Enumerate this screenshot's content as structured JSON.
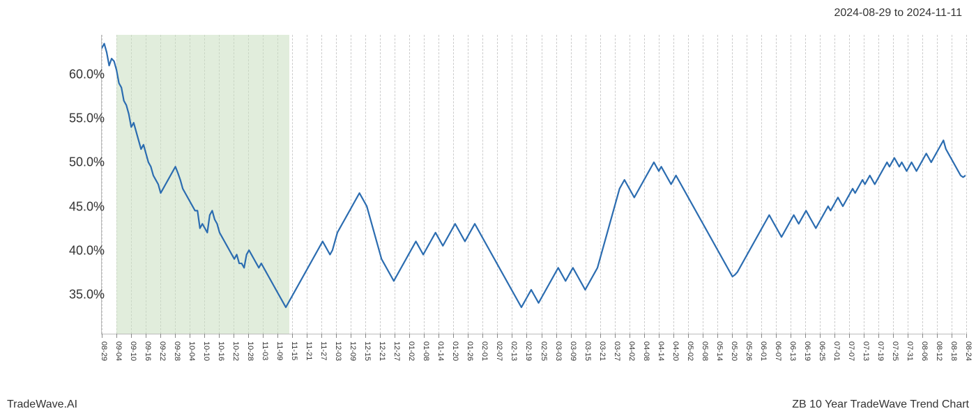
{
  "header": {
    "date_range": "2024-08-29 to 2024-11-11"
  },
  "footer": {
    "left": "TradeWave.AI",
    "right": "ZB 10 Year TradeWave Trend Chart"
  },
  "chart": {
    "type": "line",
    "background_color": "#ffffff",
    "grid_color": "#cccccc",
    "axis_color": "#bbbbbb",
    "line_color": "#2b6cb0",
    "line_width": 2.2,
    "shaded_color": "#c8dfc0",
    "shaded_opacity": 0.55,
    "label_fontsize": 18,
    "xlabel_fontsize": 11,
    "ylim": [
      30.5,
      64.5
    ],
    "yticks": [
      35.0,
      40.0,
      45.0,
      50.0,
      55.0,
      60.0
    ],
    "ytick_labels": [
      "35.0%",
      "40.0%",
      "45.0%",
      "50.0%",
      "55.0%",
      "60.0%"
    ],
    "x_labels": [
      "08-29",
      "09-04",
      "09-10",
      "09-16",
      "09-22",
      "09-28",
      "10-04",
      "10-10",
      "10-16",
      "10-22",
      "10-28",
      "11-03",
      "11-09",
      "11-15",
      "11-21",
      "11-27",
      "12-03",
      "12-09",
      "12-15",
      "12-21",
      "12-27",
      "01-02",
      "01-08",
      "01-14",
      "01-20",
      "01-26",
      "02-01",
      "02-07",
      "02-13",
      "02-19",
      "02-25",
      "03-03",
      "03-09",
      "03-15",
      "03-21",
      "03-27",
      "04-02",
      "04-08",
      "04-14",
      "04-20",
      "05-02",
      "05-08",
      "05-14",
      "05-20",
      "05-26",
      "06-01",
      "06-07",
      "06-13",
      "06-19",
      "06-25",
      "07-01",
      "07-07",
      "07-13",
      "07-19",
      "07-25",
      "07-31",
      "08-06",
      "08-12",
      "08-18",
      "08-24"
    ],
    "shaded_start_index": 1,
    "shaded_end_index": 12.8,
    "values": [
      63.0,
      63.5,
      62.5,
      61.0,
      61.8,
      61.5,
      60.5,
      59.0,
      58.5,
      57.0,
      56.5,
      55.5,
      54.0,
      54.5,
      53.5,
      52.5,
      51.5,
      52.0,
      51.0,
      50.0,
      49.5,
      48.5,
      48.0,
      47.5,
      46.5,
      47.0,
      47.5,
      48.0,
      48.5,
      49.0,
      49.5,
      48.8,
      48.0,
      47.0,
      46.5,
      46.0,
      45.5,
      45.0,
      44.5,
      44.5,
      42.5,
      43.0,
      42.5,
      42.0,
      44.0,
      44.5,
      43.5,
      43.0,
      42.0,
      41.5,
      41.0,
      40.5,
      40.0,
      39.5,
      39.0,
      39.5,
      38.5,
      38.5,
      38.0,
      39.5,
      40.0,
      39.5,
      39.0,
      38.5,
      38.0,
      38.5,
      38.0,
      37.5,
      37.0,
      36.5,
      36.0,
      35.5,
      35.0,
      34.5,
      34.0,
      33.5,
      34.0,
      34.5,
      35.0,
      35.5,
      36.0,
      36.5,
      37.0,
      37.5,
      38.0,
      38.5,
      39.0,
      39.5,
      40.0,
      40.5,
      41.0,
      40.5,
      40.0,
      39.5,
      40.0,
      41.0,
      42.0,
      42.5,
      43.0,
      43.5,
      44.0,
      44.5,
      45.0,
      45.5,
      46.0,
      46.5,
      46.0,
      45.5,
      45.0,
      44.0,
      43.0,
      42.0,
      41.0,
      40.0,
      39.0,
      38.5,
      38.0,
      37.5,
      37.0,
      36.5,
      37.0,
      37.5,
      38.0,
      38.5,
      39.0,
      39.5,
      40.0,
      40.5,
      41.0,
      40.5,
      40.0,
      39.5,
      40.0,
      40.5,
      41.0,
      41.5,
      42.0,
      41.5,
      41.0,
      40.5,
      41.0,
      41.5,
      42.0,
      42.5,
      43.0,
      42.5,
      42.0,
      41.5,
      41.0,
      41.5,
      42.0,
      42.5,
      43.0,
      42.5,
      42.0,
      41.5,
      41.0,
      40.5,
      40.0,
      39.5,
      39.0,
      38.5,
      38.0,
      37.5,
      37.0,
      36.5,
      36.0,
      35.5,
      35.0,
      34.5,
      34.0,
      33.5,
      34.0,
      34.5,
      35.0,
      35.5,
      35.0,
      34.5,
      34.0,
      34.5,
      35.0,
      35.5,
      36.0,
      36.5,
      37.0,
      37.5,
      38.0,
      37.5,
      37.0,
      36.5,
      37.0,
      37.5,
      38.0,
      37.5,
      37.0,
      36.5,
      36.0,
      35.5,
      36.0,
      36.5,
      37.0,
      37.5,
      38.0,
      39.0,
      40.0,
      41.0,
      42.0,
      43.0,
      44.0,
      45.0,
      46.0,
      47.0,
      47.5,
      48.0,
      47.5,
      47.0,
      46.5,
      46.0,
      46.5,
      47.0,
      47.5,
      48.0,
      48.5,
      49.0,
      49.5,
      50.0,
      49.5,
      49.0,
      49.5,
      49.0,
      48.5,
      48.0,
      47.5,
      48.0,
      48.5,
      48.0,
      47.5,
      47.0,
      46.5,
      46.0,
      45.5,
      45.0,
      44.5,
      44.0,
      43.5,
      43.0,
      42.5,
      42.0,
      41.5,
      41.0,
      40.5,
      40.0,
      39.5,
      39.0,
      38.5,
      38.0,
      37.5,
      37.0,
      37.2,
      37.5,
      38.0,
      38.5,
      39.0,
      39.5,
      40.0,
      40.5,
      41.0,
      41.5,
      42.0,
      42.5,
      43.0,
      43.5,
      44.0,
      43.5,
      43.0,
      42.5,
      42.0,
      41.5,
      42.0,
      42.5,
      43.0,
      43.5,
      44.0,
      43.5,
      43.0,
      43.5,
      44.0,
      44.5,
      44.0,
      43.5,
      43.0,
      42.5,
      43.0,
      43.5,
      44.0,
      44.5,
      45.0,
      44.5,
      45.0,
      45.5,
      46.0,
      45.5,
      45.0,
      45.5,
      46.0,
      46.5,
      47.0,
      46.5,
      47.0,
      47.5,
      48.0,
      47.5,
      48.0,
      48.5,
      48.0,
      47.5,
      48.0,
      48.5,
      49.0,
      49.5,
      50.0,
      49.5,
      50.0,
      50.5,
      50.0,
      49.5,
      50.0,
      49.5,
      49.0,
      49.5,
      50.0,
      49.5,
      49.0,
      49.5,
      50.0,
      50.5,
      51.0,
      50.5,
      50.0,
      50.5,
      51.0,
      51.5,
      52.0,
      52.5,
      51.5,
      51.0,
      50.5,
      50.0,
      49.5,
      49.0,
      48.5,
      48.3,
      48.5
    ]
  }
}
